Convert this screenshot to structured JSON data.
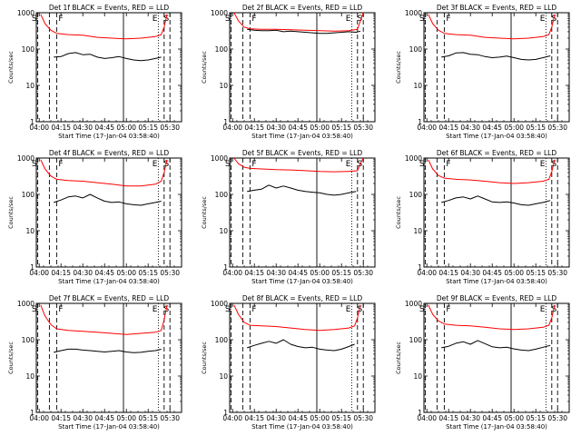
{
  "chart_data": {
    "type": "line",
    "layout": "3x3 grid",
    "ylabel": "Counts/sec",
    "xlabel": "Start Time (17-Jan-04 03:58:40)",
    "x_unit": "UT time (hh:mm)",
    "xlim": [
      "03:58",
      "05:38"
    ],
    "ylim": [
      1,
      1000
    ],
    "y_scale": "log",
    "x_tick_labels": [
      "04:00",
      "04:15",
      "04:30",
      "04:45",
      "05:00",
      "05:15",
      "05:30"
    ],
    "y_tick_labels": [
      "1",
      "10",
      "100",
      "1000"
    ],
    "legend_text": "BLACK = Events, RED = LLD",
    "colors": {
      "events": "#000000",
      "lld": "#ff0000",
      "axes": "#000000"
    },
    "markers": [
      {
        "label": "S",
        "x": "03:59",
        "style": "dashed",
        "label_side": "left"
      },
      {
        "label": "F",
        "x": "04:12",
        "style": "dashed",
        "label_side": "right"
      },
      {
        "label": "",
        "x": "04:07",
        "style": "dashed",
        "label_side": "none"
      },
      {
        "label": "",
        "x": "04:58",
        "style": "solid",
        "label_side": "none"
      },
      {
        "label": "E",
        "x": "05:22",
        "style": "dotted",
        "label_side": "left"
      },
      {
        "label": "S",
        "x": "05:30",
        "style": "dashed",
        "label_side": "left"
      },
      {
        "label": "",
        "x": "05:26",
        "style": "dashed",
        "label_side": "none"
      }
    ],
    "panels": [
      {
        "title": "Det 1f BLACK = Events, RED = LLD",
        "series": [
          {
            "name": "Events",
            "color": "#000000",
            "x": [
              "04:10",
              "04:15",
              "04:20",
              "04:25",
              "04:30",
              "04:35",
              "04:40",
              "04:45",
              "04:50",
              "04:55",
              "05:00",
              "05:05",
              "05:10",
              "05:15",
              "05:20",
              "05:24"
            ],
            "y": [
              60,
              62,
              75,
              80,
              70,
              72,
              60,
              55,
              58,
              62,
              55,
              50,
              48,
              50,
              55,
              60
            ]
          },
          {
            "name": "LLD",
            "color": "#ff0000",
            "x": [
              "04:01",
              "04:04",
              "04:08",
              "04:12",
              "04:20",
              "04:30",
              "04:40",
              "04:50",
              "05:00",
              "05:10",
              "05:20",
              "05:24",
              "05:26",
              "05:28"
            ],
            "y": [
              900,
              500,
              330,
              270,
              250,
              240,
              210,
              200,
              190,
              200,
              220,
              250,
              400,
              900
            ]
          }
        ]
      },
      {
        "title": "Det 2f BLACK = Events, RED = LLD",
        "series": [
          {
            "name": "Events",
            "color": "#000000",
            "x": [
              "04:10",
              "04:15",
              "04:20",
              "04:25",
              "04:30",
              "04:35",
              "04:40",
              "04:45",
              "04:50",
              "04:55",
              "05:00",
              "05:05",
              "05:10",
              "05:15",
              "05:20",
              "05:25",
              "05:28"
            ],
            "y": [
              350,
              330,
              320,
              320,
              330,
              300,
              310,
              300,
              290,
              280,
              270,
              270,
              280,
              290,
              300,
              290,
              310
            ]
          },
          {
            "name": "LLD",
            "color": "#ff0000",
            "x": [
              "04:01",
              "04:04",
              "04:08",
              "04:12",
              "04:20",
              "04:30",
              "04:40",
              "04:50",
              "05:00",
              "05:10",
              "05:20",
              "05:26",
              "05:28",
              "05:30"
            ],
            "y": [
              1000,
              600,
              400,
              360,
              350,
              350,
              340,
              330,
              320,
              310,
              320,
              350,
              600,
              1000
            ]
          }
        ]
      },
      {
        "title": "Det 3f BLACK = Events, RED = LLD",
        "series": [
          {
            "name": "Events",
            "color": "#000000",
            "x": [
              "04:10",
              "04:15",
              "04:20",
              "04:25",
              "04:30",
              "04:35",
              "04:40",
              "04:45",
              "04:50",
              "04:55",
              "05:00",
              "05:05",
              "05:10",
              "05:15",
              "05:20",
              "05:25"
            ],
            "y": [
              60,
              65,
              78,
              80,
              72,
              70,
              62,
              58,
              60,
              64,
              58,
              52,
              50,
              52,
              58,
              65
            ]
          },
          {
            "name": "LLD",
            "color": "#ff0000",
            "x": [
              "04:01",
              "04:04",
              "04:08",
              "04:12",
              "04:20",
              "04:30",
              "04:40",
              "04:50",
              "05:00",
              "05:10",
              "05:20",
              "05:24",
              "05:26",
              "05:28"
            ],
            "y": [
              900,
              500,
              330,
              270,
              250,
              240,
              210,
              200,
              190,
              200,
              220,
              250,
              400,
              900
            ]
          }
        ]
      },
      {
        "title": "Det 4f BLACK = Events, RED = LLD",
        "series": [
          {
            "name": "Events",
            "color": "#000000",
            "x": [
              "04:10",
              "04:15",
              "04:20",
              "04:25",
              "04:30",
              "04:35",
              "04:40",
              "04:45",
              "04:50",
              "04:55",
              "05:00",
              "05:05",
              "05:10",
              "05:15",
              "05:20",
              "05:24"
            ],
            "y": [
              60,
              70,
              85,
              90,
              80,
              100,
              80,
              65,
              60,
              62,
              55,
              52,
              50,
              55,
              60,
              65
            ]
          },
          {
            "name": "LLD",
            "color": "#ff0000",
            "x": [
              "04:01",
              "04:04",
              "04:08",
              "04:12",
              "04:20",
              "04:30",
              "04:40",
              "04:50",
              "05:00",
              "05:10",
              "05:20",
              "05:24",
              "05:26",
              "05:28"
            ],
            "y": [
              900,
              500,
              320,
              260,
              240,
              230,
              210,
              190,
              170,
              170,
              190,
              230,
              400,
              900
            ]
          }
        ]
      },
      {
        "title": "Det 5f BLACK = Events, RED = LLD",
        "series": [
          {
            "name": "Events",
            "color": "#000000",
            "x": [
              "04:10",
              "04:15",
              "04:20",
              "04:25",
              "04:30",
              "04:35",
              "04:40",
              "04:45",
              "04:50",
              "04:55",
              "05:00",
              "05:05",
              "05:10",
              "05:15",
              "05:20",
              "05:25"
            ],
            "y": [
              120,
              130,
              140,
              180,
              150,
              170,
              150,
              130,
              120,
              115,
              110,
              100,
              95,
              100,
              110,
              120
            ]
          },
          {
            "name": "LLD",
            "color": "#ff0000",
            "x": [
              "04:01",
              "04:04",
              "04:08",
              "04:12",
              "04:20",
              "04:30",
              "04:40",
              "04:50",
              "05:00",
              "05:10",
              "05:20",
              "05:26",
              "05:28",
              "05:30"
            ],
            "y": [
              1000,
              700,
              560,
              520,
              500,
              480,
              470,
              450,
              430,
              420,
              430,
              450,
              700,
              1000
            ]
          }
        ]
      },
      {
        "title": "Det 6f BLACK = Events, RED = LLD",
        "series": [
          {
            "name": "Events",
            "color": "#000000",
            "x": [
              "04:10",
              "04:15",
              "04:20",
              "04:25",
              "04:30",
              "04:35",
              "04:40",
              "04:45",
              "04:50",
              "04:55",
              "05:00",
              "05:05",
              "05:10",
              "05:15",
              "05:20",
              "05:25"
            ],
            "y": [
              60,
              68,
              80,
              85,
              75,
              90,
              75,
              62,
              60,
              62,
              58,
              52,
              50,
              55,
              60,
              68
            ]
          },
          {
            "name": "LLD",
            "color": "#ff0000",
            "x": [
              "04:01",
              "04:04",
              "04:08",
              "04:12",
              "04:20",
              "04:30",
              "04:40",
              "04:50",
              "05:00",
              "05:10",
              "05:20",
              "05:24",
              "05:26",
              "05:28"
            ],
            "y": [
              900,
              500,
              330,
              280,
              260,
              250,
              230,
              210,
              200,
              210,
              230,
              260,
              420,
              900
            ]
          }
        ]
      },
      {
        "title": "Det 7f BLACK = Events, RED = LLD",
        "series": [
          {
            "name": "Events",
            "color": "#000000",
            "x": [
              "04:10",
              "04:15",
              "04:20",
              "04:25",
              "04:30",
              "04:35",
              "04:40",
              "04:45",
              "04:50",
              "04:55",
              "05:00",
              "05:05",
              "05:10",
              "05:15",
              "05:20",
              "05:24"
            ],
            "y": [
              45,
              50,
              55,
              55,
              52,
              50,
              48,
              46,
              48,
              50,
              46,
              44,
              45,
              48,
              50,
              55
            ]
          },
          {
            "name": "LLD",
            "color": "#ff0000",
            "x": [
              "04:01",
              "04:04",
              "04:08",
              "04:12",
              "04:20",
              "04:30",
              "04:40",
              "04:50",
              "05:00",
              "05:10",
              "05:20",
              "05:24",
              "05:26",
              "05:28"
            ],
            "y": [
              900,
              450,
              260,
              200,
              180,
              170,
              160,
              150,
              140,
              150,
              160,
              180,
              350,
              900
            ]
          }
        ]
      },
      {
        "title": "Det 8f BLACK = Events, RED = LLD",
        "series": [
          {
            "name": "Events",
            "color": "#000000",
            "x": [
              "04:10",
              "04:15",
              "04:20",
              "04:25",
              "04:30",
              "04:35",
              "04:40",
              "04:45",
              "04:50",
              "04:55",
              "05:00",
              "05:05",
              "05:10",
              "05:15",
              "05:20",
              "05:24"
            ],
            "y": [
              60,
              70,
              80,
              90,
              80,
              100,
              75,
              65,
              60,
              62,
              55,
              52,
              50,
              55,
              65,
              75
            ]
          },
          {
            "name": "LLD",
            "color": "#ff0000",
            "x": [
              "04:01",
              "04:04",
              "04:08",
              "04:12",
              "04:20",
              "04:30",
              "04:40",
              "04:50",
              "05:00",
              "05:10",
              "05:20",
              "05:24",
              "05:26",
              "05:28"
            ],
            "y": [
              900,
              500,
              300,
              250,
              240,
              230,
              210,
              190,
              180,
              190,
              210,
              240,
              400,
              900
            ]
          }
        ]
      },
      {
        "title": "Det 9f BLACK = Events, RED = LLD",
        "series": [
          {
            "name": "Events",
            "color": "#000000",
            "x": [
              "04:10",
              "04:15",
              "04:20",
              "04:25",
              "04:30",
              "04:35",
              "04:40",
              "04:45",
              "04:50",
              "04:55",
              "05:00",
              "05:05",
              "05:10",
              "05:15",
              "05:20",
              "05:25"
            ],
            "y": [
              60,
              66,
              80,
              88,
              75,
              95,
              78,
              64,
              60,
              62,
              56,
              52,
              50,
              55,
              62,
              70
            ]
          },
          {
            "name": "LLD",
            "color": "#ff0000",
            "x": [
              "04:01",
              "04:04",
              "04:08",
              "04:12",
              "04:20",
              "04:30",
              "04:40",
              "04:50",
              "05:00",
              "05:10",
              "05:20",
              "05:24",
              "05:26",
              "05:28"
            ],
            "y": [
              900,
              500,
              330,
              270,
              250,
              240,
              220,
              200,
              190,
              200,
              220,
              250,
              400,
              900
            ]
          }
        ]
      }
    ]
  }
}
